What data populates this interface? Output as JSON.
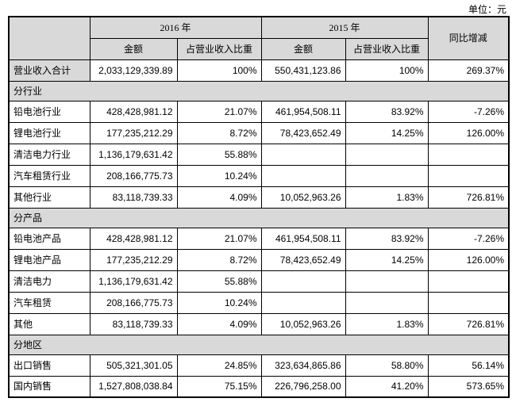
{
  "unit_label": "单位：元",
  "colors": {
    "header_bg": "#d9d9d9",
    "border": "#000000",
    "text": "#000000",
    "row_bg": "#ffffff"
  },
  "table": {
    "header": {
      "year_2016": "2016 年",
      "year_2015": "2015 年",
      "amount": "金额",
      "proportion": "占营业收入比重",
      "yoy": "同比增减"
    },
    "rows": [
      {
        "type": "data",
        "label": "营业收入合计",
        "label_gray": true,
        "a2016": "2,033,129,339.89",
        "p2016": "100%",
        "a2015": "550,431,123.86",
        "p2015": "100%",
        "yoy": "269.37%"
      },
      {
        "type": "section",
        "label": "分行业"
      },
      {
        "type": "data",
        "label": "铅电池行业",
        "a2016": "428,428,981.12",
        "p2016": "21.07%",
        "a2015": "461,954,508.11",
        "p2015": "83.92%",
        "yoy": "-7.26%"
      },
      {
        "type": "data",
        "label": "锂电池行业",
        "a2016": "177,235,212.29",
        "p2016": "8.72%",
        "a2015": "78,423,652.49",
        "p2015": "14.25%",
        "yoy": "126.00%"
      },
      {
        "type": "data",
        "label": "清洁电力行业",
        "a2016": "1,136,179,631.42",
        "p2016": "55.88%",
        "a2015": "",
        "p2015": "",
        "yoy": ""
      },
      {
        "type": "data",
        "label": "汽车租赁行业",
        "a2016": "208,166,775.73",
        "p2016": "10.24%",
        "a2015": "",
        "p2015": "",
        "yoy": ""
      },
      {
        "type": "data",
        "label": "其他行业",
        "a2016": "83,118,739.33",
        "p2016": "4.09%",
        "a2015": "10,052,963.26",
        "p2015": "1.83%",
        "yoy": "726.81%"
      },
      {
        "type": "section",
        "label": "分产品"
      },
      {
        "type": "data",
        "label": "铅电池产品",
        "a2016": "428,428,981.12",
        "p2016": "21.07%",
        "a2015": "461,954,508.11",
        "p2015": "83.92%",
        "yoy": "-7.26%"
      },
      {
        "type": "data",
        "label": "锂电池产品",
        "a2016": "177,235,212.29",
        "p2016": "8.72%",
        "a2015": "78,423,652.49",
        "p2015": "14.25%",
        "yoy": "126.00%"
      },
      {
        "type": "data",
        "label": "清洁电力",
        "a2016": "1,136,179,631.42",
        "p2016": "55.88%",
        "a2015": "",
        "p2015": "",
        "yoy": ""
      },
      {
        "type": "data",
        "label": "汽车租赁",
        "a2016": "208,166,775.73",
        "p2016": "10.24%",
        "a2015": "",
        "p2015": "",
        "yoy": ""
      },
      {
        "type": "data",
        "label": "其他",
        "a2016": "83,118,739.33",
        "p2016": "4.09%",
        "a2015": "10,052,963.26",
        "p2015": "1.83%",
        "yoy": "726.81%"
      },
      {
        "type": "section",
        "label": "分地区"
      },
      {
        "type": "data",
        "label": "出口销售",
        "a2016": "505,321,301.05",
        "p2016": "24.85%",
        "a2015": "323,634,865.86",
        "p2015": "58.80%",
        "yoy": "56.14%"
      },
      {
        "type": "data",
        "label": "国内销售",
        "a2016": "1,527,808,038.84",
        "p2016": "75.15%",
        "a2015": "226,796,258.00",
        "p2015": "41.20%",
        "yoy": "573.65%"
      }
    ]
  }
}
